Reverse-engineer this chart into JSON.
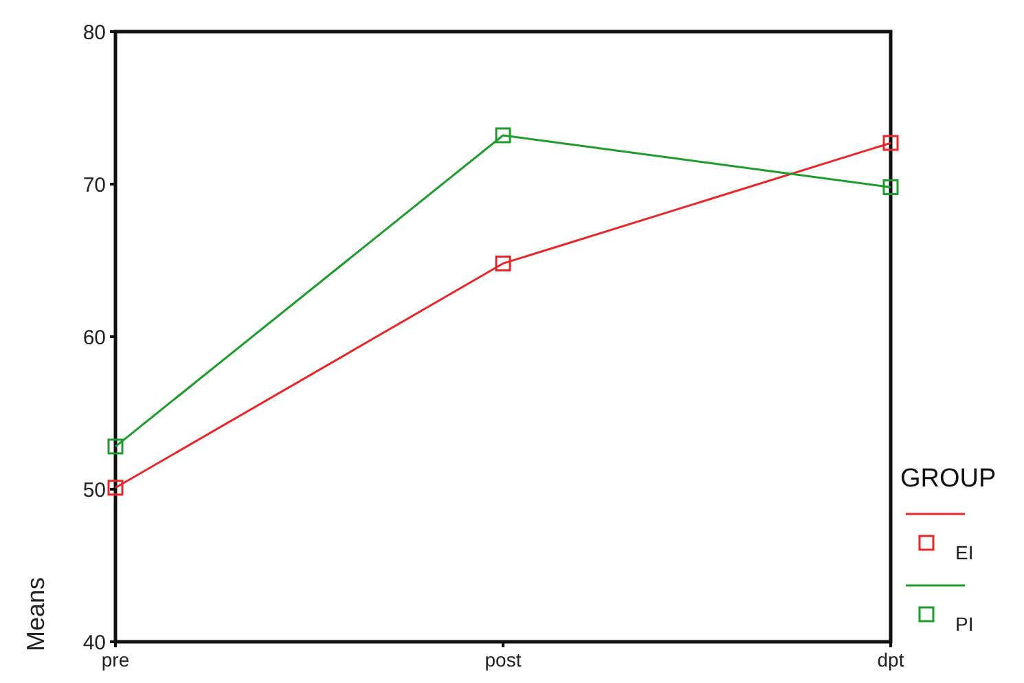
{
  "chart_data": {
    "type": "line",
    "ylabel": "Means",
    "legend_title": "GROUP",
    "categories": [
      "pre",
      "post",
      "dpt"
    ],
    "series": [
      {
        "name": "EI",
        "color": "#e8262a",
        "values": [
          50.1,
          64.8,
          72.7
        ]
      },
      {
        "name": "PI",
        "color": "#1f9a2e",
        "values": [
          52.8,
          73.2,
          69.8
        ]
      }
    ],
    "ylim": [
      40,
      80
    ],
    "yticks": [
      40,
      50,
      60,
      70,
      80
    ],
    "marker": "square",
    "legend": "right",
    "grid": false
  }
}
